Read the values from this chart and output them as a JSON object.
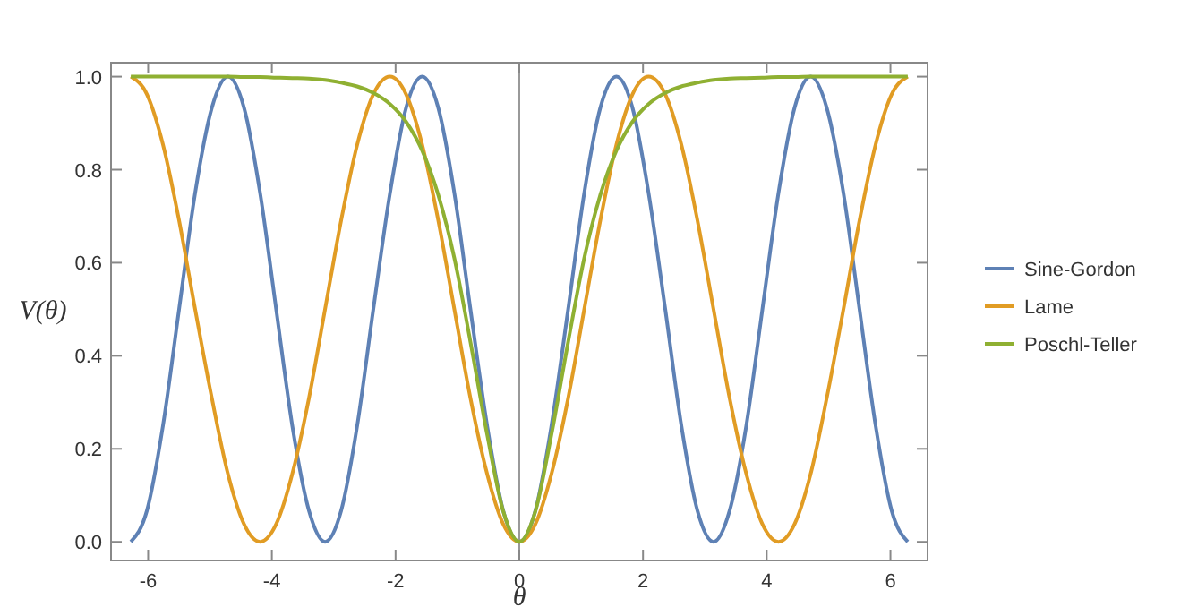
{
  "chart_data": {
    "type": "line",
    "xlabel": "θ",
    "ylabel": "V(θ)",
    "x": [
      -6.28,
      -6.02,
      -5.76,
      -5.5,
      -5.24,
      -4.97,
      -4.71,
      -4.45,
      -4.19,
      -3.93,
      -3.67,
      -3.4,
      -3.14,
      -2.88,
      -2.62,
      -2.36,
      -2.09,
      -1.83,
      -1.57,
      -1.31,
      -1.05,
      -0.79,
      -0.52,
      -0.26,
      0,
      0.26,
      0.52,
      0.79,
      1.05,
      1.31,
      1.57,
      1.83,
      2.09,
      2.36,
      2.62,
      2.88,
      3.14,
      3.4,
      3.67,
      3.93,
      4.19,
      4.45,
      4.71,
      4.97,
      5.24,
      5.5,
      5.76,
      6.02,
      6.28
    ],
    "series": [
      {
        "name": "Sine-Gordon",
        "color": "#5e81b5",
        "values": [
          0,
          0.067,
          0.25,
          0.5,
          0.75,
          0.933,
          1,
          0.933,
          0.75,
          0.5,
          0.25,
          0.067,
          0,
          0.067,
          0.25,
          0.5,
          0.75,
          0.933,
          1,
          0.933,
          0.75,
          0.5,
          0.25,
          0.067,
          0,
          0.067,
          0.25,
          0.5,
          0.75,
          0.933,
          1,
          0.933,
          0.75,
          0.5,
          0.25,
          0.067,
          0,
          0.067,
          0.25,
          0.5,
          0.75,
          0.933,
          1,
          0.933,
          0.75,
          0.5,
          0.25,
          0.067,
          0
        ]
      },
      {
        "name": "Lame",
        "color": "#e19c24",
        "values": [
          1,
          0.962,
          0.854,
          0.691,
          0.5,
          0.309,
          0.146,
          0.038,
          0,
          0.038,
          0.146,
          0.309,
          0.5,
          0.691,
          0.854,
          0.962,
          1,
          0.962,
          0.854,
          0.691,
          0.5,
          0.309,
          0.146,
          0.038,
          0,
          0.038,
          0.146,
          0.309,
          0.5,
          0.691,
          0.854,
          0.962,
          1,
          0.962,
          0.854,
          0.691,
          0.5,
          0.309,
          0.146,
          0.038,
          0,
          0.038,
          0.146,
          0.309,
          0.5,
          0.691,
          0.854,
          0.962,
          1
        ]
      },
      {
        "name": "Poschl-Teller",
        "color": "#8fb032",
        "values": [
          1,
          1,
          1,
          1,
          1,
          1,
          1,
          0.999,
          0.999,
          0.998,
          0.997,
          0.996,
          0.993,
          0.987,
          0.979,
          0.965,
          0.941,
          0.903,
          0.841,
          0.746,
          0.61,
          0.43,
          0.231,
          0.066,
          0,
          0.066,
          0.231,
          0.43,
          0.61,
          0.746,
          0.841,
          0.903,
          0.941,
          0.965,
          0.979,
          0.987,
          0.993,
          0.996,
          0.997,
          0.998,
          0.999,
          0.999,
          1,
          1,
          1,
          1,
          1,
          1,
          1
        ]
      }
    ],
    "xlim": [
      -6.6,
      6.6
    ],
    "ylim": [
      -0.04,
      1.03
    ],
    "xticks": [
      -6,
      -4,
      -2,
      0,
      2,
      4,
      6
    ],
    "yticks": [
      {
        "value": 0,
        "label": "0.0"
      },
      {
        "value": 0.2,
        "label": "0.2"
      },
      {
        "value": 0.4,
        "label": "0.4"
      },
      {
        "value": 0.6,
        "label": "0.6"
      },
      {
        "value": 0.8,
        "label": "0.8"
      },
      {
        "value": 1,
        "label": "1.0"
      }
    ],
    "ref_lines": [
      {
        "axis": "x",
        "value": 0,
        "color": "#999999"
      }
    ],
    "legend": "right",
    "grid": false,
    "marker": "none",
    "line_style": "solid"
  }
}
